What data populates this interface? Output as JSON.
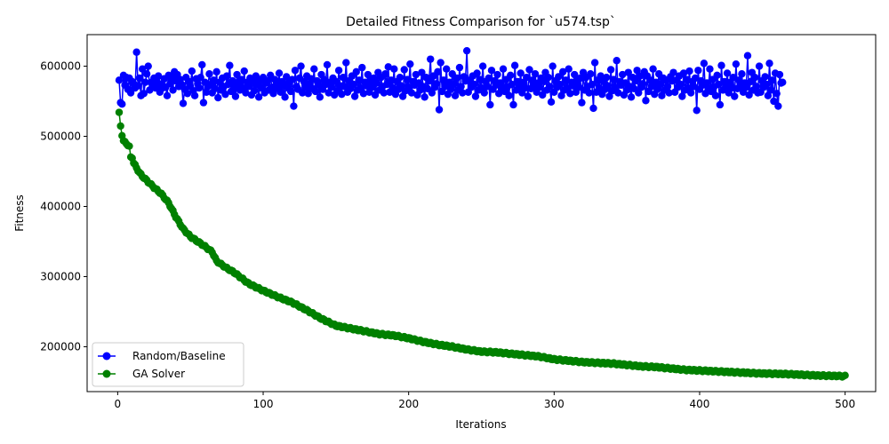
{
  "chart_data": {
    "type": "line",
    "title": "Detailed Fitness Comparison for `u574.tsp`",
    "xlabel": "Iterations",
    "ylabel": "Fitness",
    "xlim": [
      -21,
      521
    ],
    "ylim": [
      136000,
      645000
    ],
    "xticks": [
      0,
      100,
      200,
      300,
      400,
      500
    ],
    "yticks": [
      200000,
      300000,
      400000,
      500000,
      600000
    ],
    "grid": false,
    "legend_position": "lower-left",
    "series": [
      {
        "name": "Random/Baseline",
        "color": "#0000ff",
        "marker": "circle",
        "x_start": 1,
        "x_step": 1,
        "values": [
          580000,
          548000,
          546000,
          587000,
          573000,
          584000,
          567000,
          583000,
          562000,
          578000,
          575000,
          569000,
          620000,
          572000,
          583000,
          558000,
          596000,
          561000,
          577000,
          589000,
          600000,
          566000,
          577000,
          572000,
          583000,
          569000,
          578000,
          586000,
          563000,
          574000,
          569000,
          582000,
          570000,
          558000,
          587000,
          575000,
          583000,
          566000,
          592000,
          579000,
          588000,
          571000,
          581000,
          574000,
          547000,
          567000,
          584000,
          561000,
          578000,
          571000,
          593000,
          565000,
          558000,
          582000,
          575000,
          569000,
          584000,
          602000,
          548000,
          577000,
          563000,
          571000,
          589000,
          574000,
          562000,
          580000,
          568000,
          592000,
          555000,
          577000,
          566000,
          583000,
          571000,
          560000,
          586000,
          574000,
          601000,
          564000,
          579000,
          570000,
          557000,
          588000,
          575000,
          566000,
          581000,
          569000,
          593000,
          562000,
          577000,
          571000,
          583000,
          559000,
          578000,
          565000,
          586000,
          574000,
          556000,
          580000,
          569000,
          584000,
          562000,
          576000,
          579000,
          566000,
          587000,
          570000,
          561000,
          581000,
          574000,
          568000,
          590000,
          563000,
          578000,
          572000,
          556000,
          585000,
          569000,
          577000,
          564000,
          581000,
          543000,
          594000,
          571000,
          567000,
          583000,
          600000,
          562000,
          578000,
          570000,
          586000,
          561000,
          575000,
          582000,
          568000,
          596000,
          564000,
          579000,
          573000,
          556000,
          588000,
          567000,
          581000,
          574000,
          602000,
          562000,
          577000,
          570000,
          583000,
          559000,
          578000,
          565000,
          594000,
          572000,
          560000,
          584000,
          571000,
          605000,
          563000,
          579000,
          568000,
          586000,
          574000,
          557000,
          592000,
          566000,
          580000,
          569000,
          598000,
          561000,
          577000,
          572000,
          588000,
          563000,
          579000,
          570000,
          583000,
          559000,
          576000,
          591000,
          566000,
          584000,
          571000,
          562000,
          589000,
          574000,
          599000,
          563000,
          580000,
          569000,
          596000,
          560000,
          578000,
          567000,
          584000,
          572000,
          557000,
          595000,
          565000,
          581000,
          570000,
          603000,
          562000,
          578000,
          573000,
          588000,
          559000,
          576000,
          566000,
          591000,
          571000,
          556000,
          584000,
          568000,
          579000,
          610000,
          562000,
          586000,
          570000,
          575000,
          592000,
          538000,
          605000,
          564000,
          580000,
          571000,
          596000,
          560000,
          577000,
          567000,
          589000,
          574000,
          558000,
          583000,
          566000,
          598000,
          571000,
          562000,
          585000,
          579000,
          622000,
          563000,
          580000,
          570000,
          586000,
          574000,
          557000,
          590000,
          566000,
          581000,
          569000,
          600000,
          562000,
          578000,
          571000,
          583000,
          545000,
          594000,
          567000,
          579000,
          573000,
          588000,
          561000,
          576000,
          569000,
          596000,
          564000,
          581000,
          571000,
          558000,
          587000,
          574000,
          545000,
          601000,
          566000,
          578000,
          571000,
          590000,
          562000,
          577000,
          569000,
          584000,
          557000,
          595000,
          568000,
          580000,
          572000,
          589000,
          563000,
          576000,
          570000,
          583000,
          559000,
          578000,
          591000,
          566000,
          584000,
          571000,
          549000,
          600000,
          563000,
          579000,
          570000,
          585000,
          574000,
          558000,
          592000,
          566000,
          580000,
          569000,
          596000,
          561000,
          577000,
          572000,
          588000,
          563000,
          579000,
          570000,
          583000,
          548000,
          591000,
          566000,
          584000,
          571000,
          562000,
          589000,
          574000,
          540000,
          605000,
          563000,
          580000,
          569000,
          586000,
          560000,
          578000,
          567000,
          584000,
          572000,
          557000,
          595000,
          565000,
          581000,
          570000,
          608000,
          562000,
          578000,
          573000,
          588000,
          559000,
          576000,
          566000,
          591000,
          571000,
          556000,
          584000,
          568000,
          579000,
          594000,
          562000,
          586000,
          570000,
          575000,
          592000,
          551000,
          586000,
          564000,
          580000,
          571000,
          596000,
          560000,
          577000,
          567000,
          589000,
          574000,
          558000,
          583000,
          566000,
          580000,
          571000,
          562000,
          585000,
          579000,
          591000,
          563000,
          580000,
          570000,
          586000,
          574000,
          557000,
          590000,
          566000,
          581000,
          569000,
          593000,
          562000,
          578000,
          571000,
          583000,
          537000,
          594000,
          567000,
          579000,
          573000,
          604000,
          561000,
          576000,
          569000,
          596000,
          564000,
          581000,
          571000,
          558000,
          587000,
          574000,
          545000,
          601000,
          566000,
          578000,
          571000,
          590000,
          562000,
          577000,
          569000,
          584000,
          557000,
          603000,
          568000,
          580000,
          572000,
          589000,
          563000,
          576000,
          570000,
          615000,
          559000,
          578000,
          591000,
          566000,
          584000,
          571000,
          562000,
          600000,
          563000,
          579000,
          570000,
          585000,
          574000,
          558000,
          604000,
          566000,
          580000,
          550000,
          590000,
          561000,
          543000,
          588000,
          576000,
          577000
        ]
      },
      {
        "name": "GA Solver",
        "color": "#008000",
        "marker": "circle",
        "x_start": 1,
        "x_step": 1,
        "values": []
      }
    ],
    "ga_anchor_points": [
      [
        1,
        533000
      ],
      [
        2,
        515000
      ],
      [
        3,
        502000
      ],
      [
        4,
        493000
      ],
      [
        6,
        490000
      ],
      [
        8,
        485000
      ],
      [
        9,
        470000
      ],
      [
        10,
        470000
      ],
      [
        11,
        462000
      ],
      [
        13,
        455000
      ],
      [
        15,
        448000
      ],
      [
        17,
        443000
      ],
      [
        20,
        437000
      ],
      [
        25,
        427000
      ],
      [
        30,
        418000
      ],
      [
        35,
        405000
      ],
      [
        40,
        385000
      ],
      [
        45,
        368000
      ],
      [
        50,
        357000
      ],
      [
        55,
        350000
      ],
      [
        60,
        343000
      ],
      [
        65,
        335000
      ],
      [
        68,
        322000
      ],
      [
        75,
        312000
      ],
      [
        80,
        306000
      ],
      [
        90,
        290000
      ],
      [
        100,
        280000
      ],
      [
        110,
        271000
      ],
      [
        120,
        263000
      ],
      [
        130,
        252000
      ],
      [
        140,
        240000
      ],
      [
        150,
        230000
      ],
      [
        160,
        226000
      ],
      [
        170,
        222000
      ],
      [
        180,
        218000
      ],
      [
        190,
        216000
      ],
      [
        200,
        212000
      ],
      [
        210,
        207000
      ],
      [
        220,
        203000
      ],
      [
        230,
        200000
      ],
      [
        240,
        196000
      ],
      [
        250,
        193000
      ],
      [
        260,
        192000
      ],
      [
        270,
        190000
      ],
      [
        280,
        188000
      ],
      [
        290,
        186000
      ],
      [
        300,
        182000
      ],
      [
        310,
        180000
      ],
      [
        320,
        178000
      ],
      [
        330,
        177000
      ],
      [
        340,
        176000
      ],
      [
        350,
        174000
      ],
      [
        360,
        172000
      ],
      [
        370,
        171000
      ],
      [
        380,
        169000
      ],
      [
        390,
        167000
      ],
      [
        400,
        166000
      ],
      [
        420,
        164000
      ],
      [
        440,
        162000
      ],
      [
        460,
        161000
      ],
      [
        480,
        159000
      ],
      [
        500,
        158000
      ]
    ]
  }
}
